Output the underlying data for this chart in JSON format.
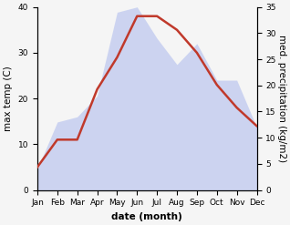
{
  "months": [
    "Jan",
    "Feb",
    "Mar",
    "Apr",
    "May",
    "Jun",
    "Jul",
    "Aug",
    "Sep",
    "Oct",
    "Nov",
    "Dec"
  ],
  "max_temp": [
    5,
    11,
    11,
    22,
    29,
    38,
    38,
    35,
    30,
    23,
    18,
    14
  ],
  "precipitation": [
    4,
    13,
    14,
    18,
    34,
    35,
    29,
    24,
    28,
    21,
    21,
    12
  ],
  "temp_color": "#c0392b",
  "precip_fill_color": "#c5cef0",
  "precip_alpha": 0.85,
  "temp_ylim": [
    0,
    40
  ],
  "precip_ylim": [
    0,
    35
  ],
  "xlabel": "date (month)",
  "ylabel_left": "max temp (C)",
  "ylabel_right": "med. precipitation (kg/m2)",
  "label_fontsize": 7.5,
  "tick_fontsize": 6.5,
  "line_width": 1.8,
  "fig_width": 3.18,
  "fig_height": 2.47,
  "dpi": 100,
  "bg_color": "#f5f5f5"
}
